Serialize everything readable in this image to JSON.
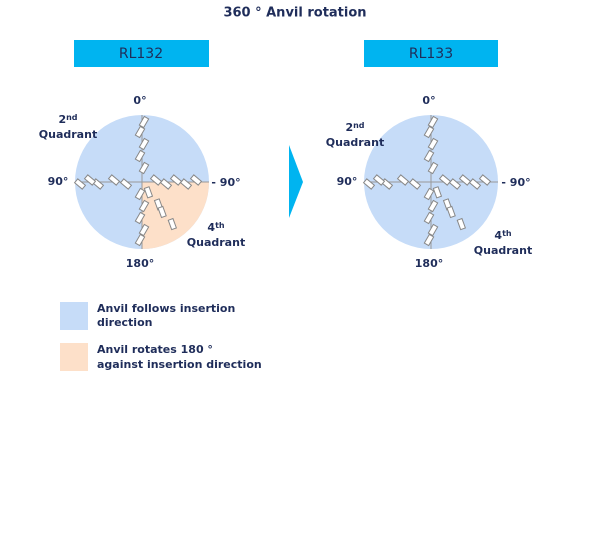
{
  "title": "360 °  Anvil rotation",
  "panels": [
    {
      "header": "RL132",
      "top": "0°",
      "left": "90°",
      "right": "- 90°",
      "bottom": "180°",
      "q2": {
        "number": "2",
        "suffix": "nd",
        "word": "Quadrant"
      },
      "q4": {
        "number": "4",
        "suffix": "th",
        "word": "Quadrant"
      }
    },
    {
      "header": "RL133",
      "top": "0°",
      "left": "90°",
      "right": "- 90°",
      "bottom": "180°",
      "q2": {
        "number": "2",
        "suffix": "nd",
        "word": "Quadrant"
      },
      "q4": {
        "number": "4",
        "suffix": "th",
        "word": "Quadrant"
      }
    }
  ],
  "legend": [
    {
      "lines": [
        "Anvil follows insertion",
        "direction"
      ]
    },
    {
      "lines": [
        "Anvil rotates 180 °",
        "against insertion direction"
      ]
    }
  ]
}
